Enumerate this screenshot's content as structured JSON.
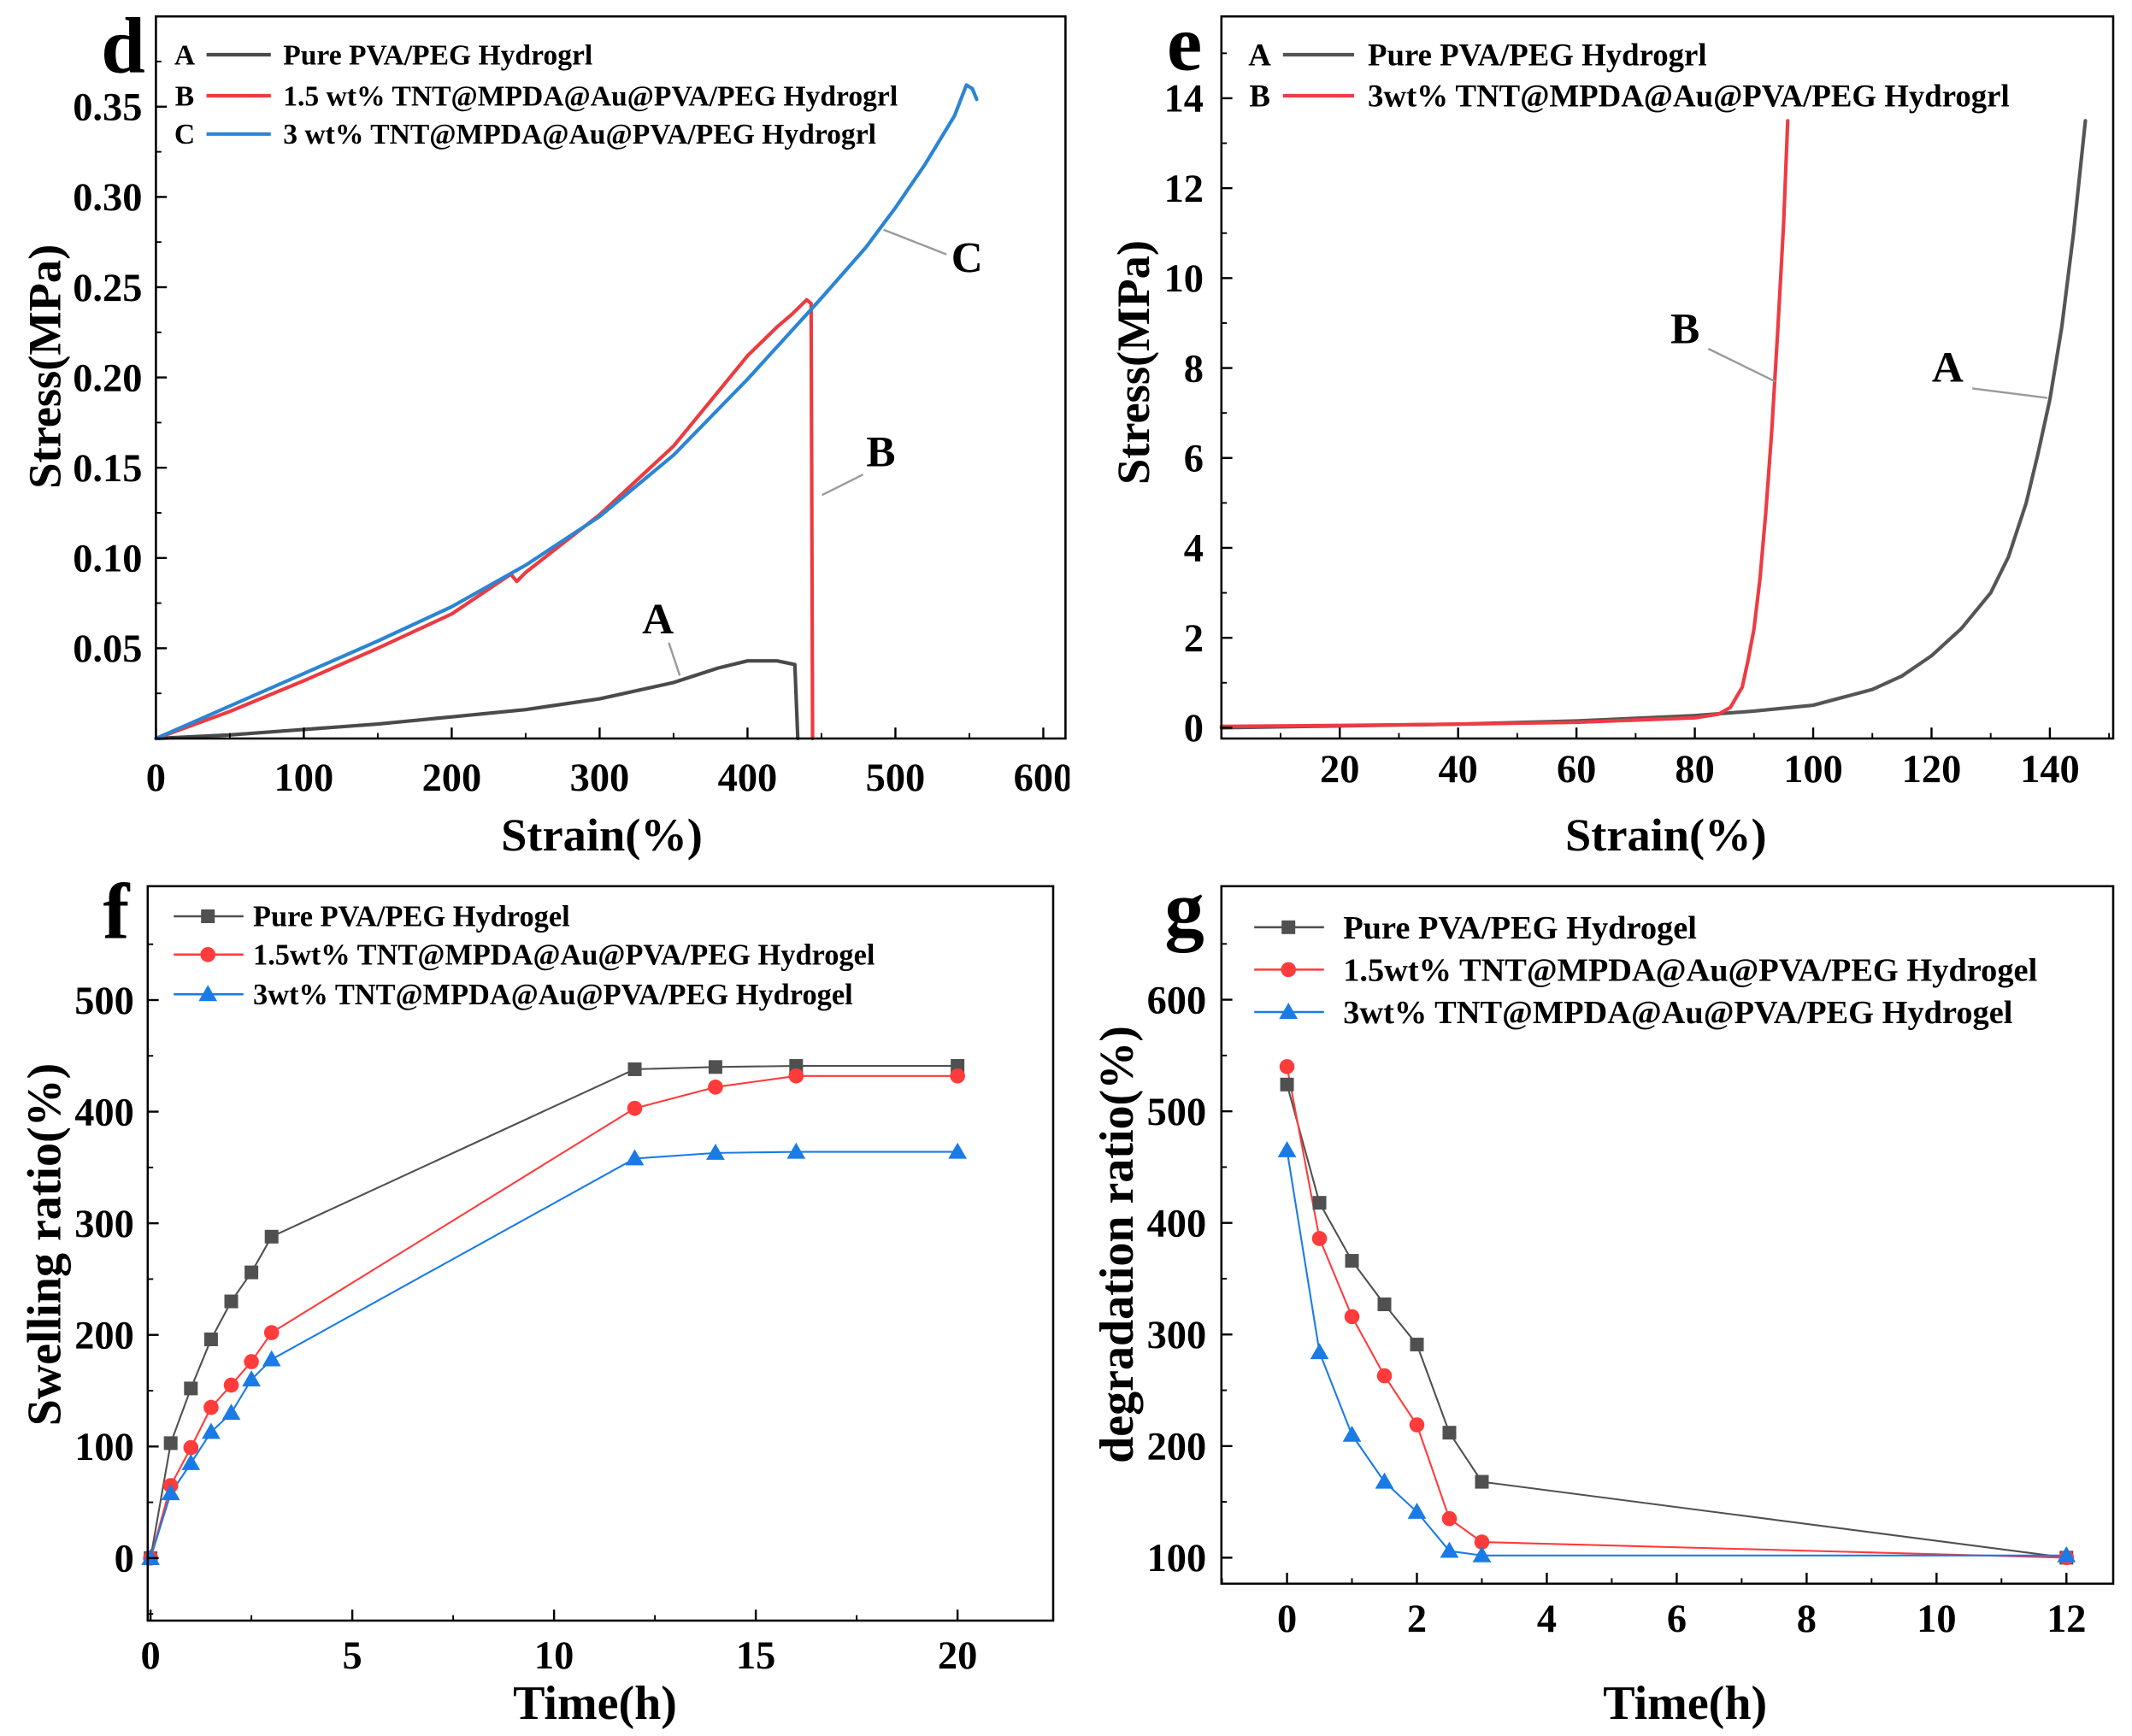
{
  "chart_data": [
    {
      "panel": "d",
      "type": "line",
      "xlabel": "Strain(%)",
      "ylabel": "Stress(MPa)",
      "xlim": [
        0,
        615
      ],
      "ylim": [
        0,
        0.4
      ],
      "xticks": [
        "0",
        "100",
        "200",
        "300",
        "400",
        "500",
        "600"
      ],
      "yticks": [
        "0.05",
        "0.10",
        "0.15",
        "0.20",
        "0.25",
        "0.30",
        "0.35"
      ],
      "legend_position": "top-left",
      "series": [
        {
          "key": "A",
          "name": "Pure PVA/PEG Hydrogrl",
          "curve_label": "A",
          "color": "#4a4a4a",
          "marker": "none",
          "x": [
            0,
            50,
            100,
            150,
            200,
            250,
            300,
            350,
            380,
            400,
            420,
            432,
            434
          ],
          "y": [
            0,
            0.002,
            0.005,
            0.008,
            0.012,
            0.016,
            0.022,
            0.031,
            0.039,
            0.043,
            0.043,
            0.041,
            0
          ]
        },
        {
          "key": "B",
          "name": "1.5 wt% TNT@MPDA@Au@PVA/PEG Hydrogrl",
          "curve_label": "B",
          "color": "#ec3b40",
          "marker": "none",
          "x": [
            0,
            50,
            100,
            150,
            200,
            240,
            244,
            250,
            300,
            350,
            400,
            420,
            430,
            440,
            443,
            444
          ],
          "y": [
            0,
            0.015,
            0.032,
            0.05,
            0.069,
            0.091,
            0.087,
            0.092,
            0.124,
            0.162,
            0.212,
            0.228,
            0.235,
            0.243,
            0.241,
            0
          ]
        },
        {
          "key": "C",
          "name": "3 wt% TNT@MPDA@Au@PVA/PEG Hydrogrl",
          "curve_label": "C",
          "color": "#2b85d4",
          "marker": "none",
          "x": [
            0,
            50,
            100,
            150,
            200,
            250,
            300,
            350,
            400,
            450,
            480,
            500,
            520,
            540,
            548,
            552,
            555
          ],
          "y": [
            0,
            0.018,
            0.036,
            0.054,
            0.073,
            0.096,
            0.123,
            0.157,
            0.199,
            0.244,
            0.272,
            0.294,
            0.318,
            0.345,
            0.362,
            0.36,
            0.354
          ]
        }
      ]
    },
    {
      "panel": "e",
      "type": "line",
      "xlabel": "Strain(%)",
      "ylabel": "Stress(MPa)",
      "xlim": [
        0,
        150.7
      ],
      "ylim": [
        -0.24,
        15.82
      ],
      "xticks": [
        "20",
        "40",
        "60",
        "80",
        "100",
        "120",
        "140"
      ],
      "yticks": [
        "0",
        "2",
        "4",
        "6",
        "8",
        "10",
        "12",
        "14"
      ],
      "legend_position": "top-left",
      "series": [
        {
          "key": "A",
          "name": "Pure PVA/PEG Hydrogrl",
          "curve_label": "A",
          "color": "#555555",
          "marker": "none",
          "x": [
            0,
            20,
            40,
            60,
            80,
            90,
            100,
            110,
            115,
            120,
            125,
            130,
            133,
            136,
            138,
            140,
            142,
            144,
            146
          ],
          "y": [
            0,
            0.04,
            0.08,
            0.15,
            0.27,
            0.37,
            0.5,
            0.85,
            1.15,
            1.6,
            2.2,
            3.0,
            3.8,
            5.0,
            6.1,
            7.3,
            8.9,
            11.0,
            13.5
          ]
        },
        {
          "key": "B",
          "name": "3wt% TNT@MPDA@Au@PVA/PEG Hydrogrl",
          "curve_label": "B",
          "color": "#ee3b44",
          "marker": "none",
          "x": [
            0,
            20,
            40,
            60,
            80,
            84,
            86,
            88,
            89,
            90,
            91,
            92,
            93,
            94,
            95,
            95.7
          ],
          "y": [
            0.03,
            0.05,
            0.08,
            0.12,
            0.22,
            0.3,
            0.45,
            0.9,
            1.5,
            2.2,
            3.3,
            4.8,
            6.6,
            8.8,
            11.2,
            13.5
          ]
        }
      ]
    },
    {
      "panel": "f",
      "type": "line",
      "xlabel": "Time(h)",
      "ylabel": "Swelling ratio(%)",
      "xlim": [
        -0.07,
        22.37
      ],
      "ylim": [
        -56,
        602
      ],
      "xticks": [
        "0",
        "5",
        "10",
        "15",
        "20"
      ],
      "yticks": [
        "0",
        "100",
        "200",
        "300",
        "400",
        "500"
      ],
      "legend_position": "top-left",
      "series": [
        {
          "name": "Pure PVA/PEG Hydrogel",
          "color": "#505050",
          "marker": "square",
          "x": [
            0,
            0.5,
            1,
            1.5,
            2,
            2.5,
            3,
            12,
            14,
            16,
            20
          ],
          "y": [
            0,
            103,
            152,
            196,
            230,
            256,
            288,
            438,
            440,
            441,
            441
          ]
        },
        {
          "name": "1.5wt% TNT@MPDA@Au@PVA/PEG Hydrogel",
          "color": "#ff3b3b",
          "marker": "circle",
          "x": [
            0,
            0.5,
            1,
            1.5,
            2,
            2.5,
            3,
            12,
            14,
            16,
            20
          ],
          "y": [
            0,
            65,
            99,
            135,
            155,
            176,
            202,
            403,
            422,
            432,
            432
          ]
        },
        {
          "name": "3wt% TNT@MPDA@Au@PVA/PEG Hydrogel",
          "color": "#1a7be6",
          "marker": "triangle",
          "x": [
            0,
            0.5,
            1,
            1.5,
            2,
            2.5,
            3,
            12,
            14,
            16,
            20
          ],
          "y": [
            0,
            58,
            85,
            113,
            130,
            160,
            178,
            358,
            363,
            364,
            364
          ]
        }
      ]
    },
    {
      "panel": "g",
      "type": "line",
      "xlabel": "Time(h)",
      "ylabel": "degradation ratio(%)",
      "xlim": [
        -1.01,
        12.72
      ],
      "ylim": [
        76.7,
        701.7
      ],
      "xticks": [
        "0",
        "2",
        "4",
        "6",
        "8",
        "10",
        "12"
      ],
      "yticks": [
        "100",
        "200",
        "300",
        "400",
        "500",
        "600"
      ],
      "legend_position": "top-left",
      "series": [
        {
          "name": "Pure PVA/PEG Hydrogel",
          "color": "#505050",
          "marker": "square",
          "x": [
            0,
            0.5,
            1,
            1.5,
            2,
            2.5,
            3,
            12
          ],
          "y": [
            524,
            418,
            366,
            327,
            291,
            212,
            168,
            100
          ]
        },
        {
          "name": "1.5wt% TNT@MPDA@Au@PVA/PEG Hydrogel",
          "color": "#ff3b3b",
          "marker": "circle",
          "x": [
            0,
            0.5,
            1,
            1.5,
            2,
            2.5,
            3,
            12
          ],
          "y": [
            540,
            386,
            316,
            263,
            219,
            135,
            114,
            100
          ]
        },
        {
          "name": "3wt% TNT@MPDA@Au@PVA/PEG Hydrogel",
          "color": "#1a7be6",
          "marker": "triangle",
          "x": [
            0,
            0.5,
            1,
            1.5,
            2,
            2.5,
            3,
            12
          ],
          "y": [
            465,
            284,
            210,
            168,
            141,
            106,
            102,
            102
          ]
        }
      ]
    }
  ]
}
